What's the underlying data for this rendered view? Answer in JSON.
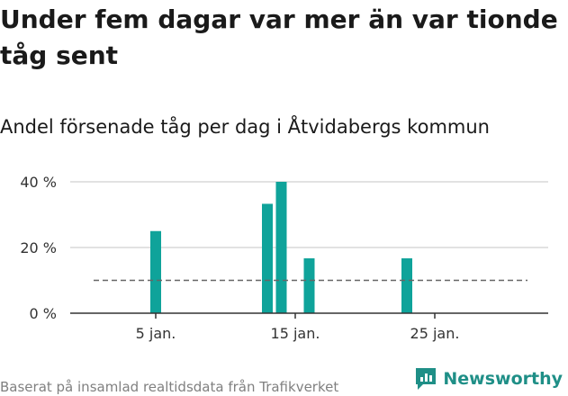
{
  "header": {
    "title": "Under fem dagar var mer än var tionde tåg sent",
    "subtitle": "Andel försenade tåg per dag i Åtvidabergs kommun"
  },
  "footer": {
    "source": "Baserat på insamlad realtidsdata från Trafikverket",
    "brand": "Newsworthy"
  },
  "colors": {
    "bar": "#0fa39a",
    "grid": "#d9d9d9",
    "reference_line": "#666666",
    "brand": "#1f8f87"
  },
  "chart_data": {
    "type": "bar",
    "title": "Andel försenade tåg per dag i Åtvidabergs kommun",
    "xlabel": "",
    "ylabel": "",
    "x_unit": "day of January",
    "x_range": [
      1,
      31
    ],
    "x_ticks": [
      {
        "value": 5,
        "label": "5 jan."
      },
      {
        "value": 15,
        "label": "15 jan."
      },
      {
        "value": 25,
        "label": "25 jan."
      }
    ],
    "y_ticks": [
      {
        "value": 0,
        "label": "0 %"
      },
      {
        "value": 20,
        "label": "20 %"
      },
      {
        "value": 40,
        "label": "40 %"
      }
    ],
    "ylim": [
      0,
      40
    ],
    "grid": true,
    "points": [
      {
        "x": 5,
        "y": 25
      },
      {
        "x": 13,
        "y": 33.3
      },
      {
        "x": 14,
        "y": 40
      },
      {
        "x": 16,
        "y": 16.7
      },
      {
        "x": 23,
        "y": 16.7
      }
    ],
    "reference_line": {
      "y": 10,
      "style": "dashed"
    }
  }
}
